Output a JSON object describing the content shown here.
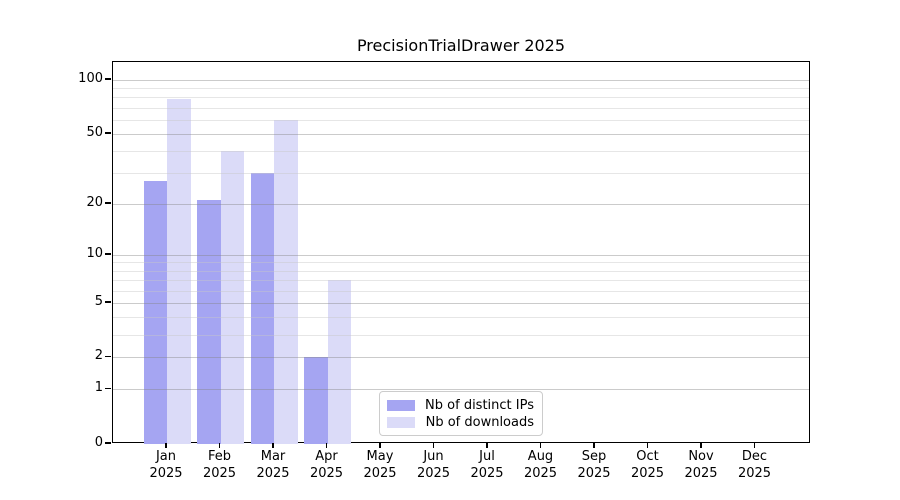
{
  "chart_data": {
    "type": "bar",
    "title": "PrecisionTrialDrawer 2025",
    "year_label": "2025",
    "months": [
      "Jan",
      "Feb",
      "Mar",
      "Apr",
      "May",
      "Jun",
      "Jul",
      "Aug",
      "Sep",
      "Oct",
      "Nov",
      "Dec"
    ],
    "series": [
      {
        "name": "Nb of distinct IPs",
        "color": "#a5a5f2",
        "values": [
          27,
          21,
          30,
          2,
          null,
          null,
          null,
          null,
          null,
          null,
          null,
          null
        ]
      },
      {
        "name": "Nb of downloads",
        "color": "#dbdbf8",
        "values": [
          78,
          40,
          60,
          7,
          null,
          null,
          null,
          null,
          null,
          null,
          null,
          null
        ]
      }
    ],
    "y_axis": {
      "scale": "log1p",
      "major_ticks": [
        0,
        1,
        2,
        5,
        10,
        20,
        50,
        100
      ],
      "minor_ticks": [
        3,
        4,
        6,
        7,
        8,
        9,
        30,
        40,
        60,
        70,
        80,
        90
      ],
      "ylim": [
        0,
        126
      ]
    },
    "xlabel": "",
    "ylabel": "",
    "grid": "horizontal",
    "legend_position": "lower center inside plot"
  }
}
